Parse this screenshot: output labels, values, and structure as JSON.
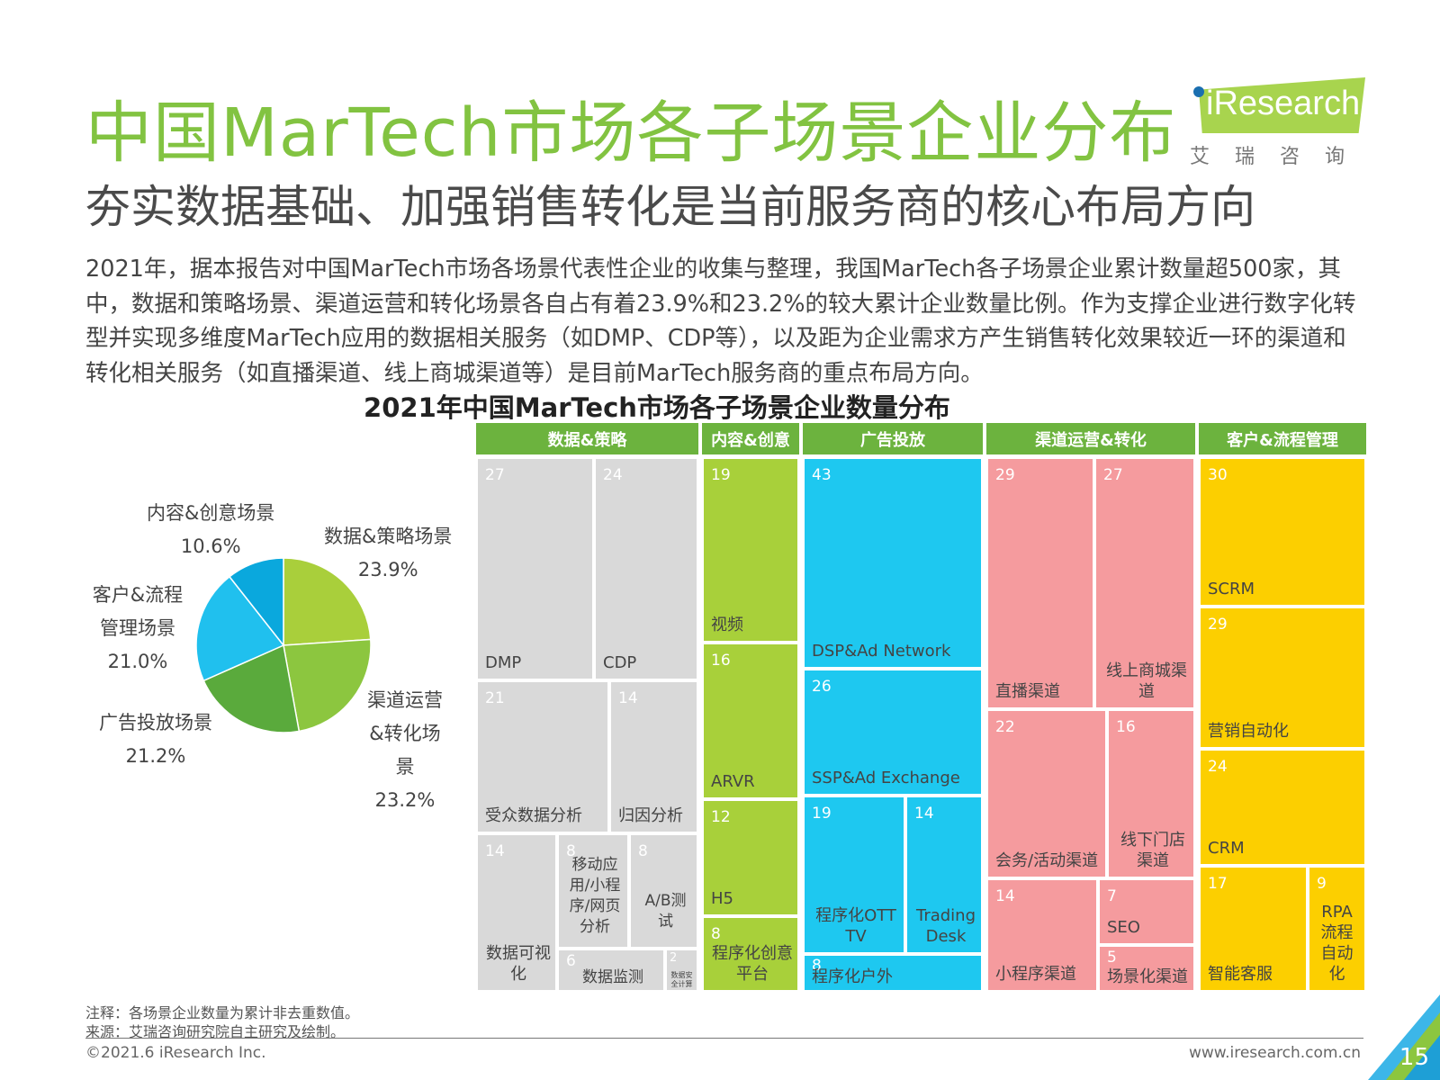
{
  "header": {
    "title": "中国MarTech市场各子场景企业分布",
    "subtitle": "夯实数据基础、加强销售转化是当前服务商的核心布局方向",
    "logo_text": "iResearch",
    "logo_cn": "艾瑞咨询"
  },
  "body_text": "2021年，据本报告对中国MarTech市场各场景代表性企业的收集与整理，我国MarTech各子场景企业累计数量超500家，其中，数据和策略场景、渠道运营和转化场景各自占有着23.9%和23.2%的较大累计企业数量比例。作为支撑企业进行数字化转型并实现多维度MarTech应用的数据相关服务（如DMP、CDP等），以及距为企业需求方产生销售转化效果较近一环的渠道和转化相关服务（如直播渠道、线上商城渠道等）是目前MarTech服务商的重点布局方向。",
  "chart_data": [
    {
      "type": "pie",
      "title": "",
      "slices": [
        {
          "label": "数据&策略场景",
          "value": 23.9,
          "display": "23.9%",
          "color": "#a9cf3b"
        },
        {
          "label": "渠道运营&转化场景",
          "value": 23.2,
          "display": "23.2%",
          "color": "#8cc63f"
        },
        {
          "label": "广告投放场景",
          "value": 21.2,
          "display": "21.2%",
          "color": "#5aaa3c"
        },
        {
          "label": "客户&流程管理场景",
          "value": 21.0,
          "display": "21.0%",
          "color": "#20c0ee"
        },
        {
          "label": "内容&创意场景",
          "value": 10.6,
          "display": "10.6%",
          "color": "#0aa8dd"
        }
      ]
    },
    {
      "type": "treemap",
      "title": "2021年中国MarTech市场各子场景企业数量分布",
      "categories": [
        {
          "name": "数据&策略",
          "color": "#6cb33e",
          "tile_color": "#d9d9d9",
          "items": [
            {
              "label": "DMP",
              "value": 27
            },
            {
              "label": "CDP",
              "value": 24
            },
            {
              "label": "受众数据分析",
              "value": 21
            },
            {
              "label": "归因分析",
              "value": 14
            },
            {
              "label": "数据可视化",
              "value": 14
            },
            {
              "label": "移动应用/小程序/网页分析",
              "value": 8
            },
            {
              "label": "A/B测试",
              "value": 8
            },
            {
              "label": "数据监测",
              "value": 6
            },
            {
              "label": "数据安全计算",
              "value": 2
            }
          ]
        },
        {
          "name": "内容&创意",
          "color": "#6cb33e",
          "tile_color": "#a8d03a",
          "items": [
            {
              "label": "视频",
              "value": 19
            },
            {
              "label": "ARVR",
              "value": 16
            },
            {
              "label": "H5",
              "value": 12
            },
            {
              "label": "程序化创意平台",
              "value": 8
            }
          ]
        },
        {
          "name": "广告投放",
          "color": "#6cb33e",
          "tile_color": "#1ec8f0",
          "items": [
            {
              "label": "DSP&Ad Network",
              "value": 43
            },
            {
              "label": "SSP&Ad Exchange",
              "value": 26
            },
            {
              "label": "程序化OTT TV",
              "value": 19
            },
            {
              "label": "Trading Desk",
              "value": 14
            },
            {
              "label": "程序化户外",
              "value": 8
            }
          ]
        },
        {
          "name": "渠道运营&转化",
          "color": "#6cb33e",
          "tile_color": "#f59b9e",
          "items": [
            {
              "label": "直播渠道",
              "value": 29
            },
            {
              "label": "线上商城渠道",
              "value": 27
            },
            {
              "label": "会务/活动渠道",
              "value": 22
            },
            {
              "label": "线下门店渠道",
              "value": 16
            },
            {
              "label": "小程序渠道",
              "value": 14
            },
            {
              "label": "SEO",
              "value": 7
            },
            {
              "label": "场景化渠道",
              "value": 5
            }
          ]
        },
        {
          "name": "客户&流程管理",
          "color": "#6cb33e",
          "tile_color": "#fccf00",
          "items": [
            {
              "label": "SCRM",
              "value": 30
            },
            {
              "label": "营销自动化",
              "value": 29
            },
            {
              "label": "CRM",
              "value": 24
            },
            {
              "label": "智能客服",
              "value": 17
            },
            {
              "label": "RPA流程自动化",
              "value": 9
            }
          ]
        }
      ]
    }
  ],
  "footer": {
    "note": "注释：各场景企业数量为累计非去重数值。",
    "source": "来源：艾瑞咨询研究院自主研究及绘制。",
    "copyright": "©2021.6 iResearch Inc.",
    "url": "www.iresearch.com.cn",
    "page": "15"
  }
}
